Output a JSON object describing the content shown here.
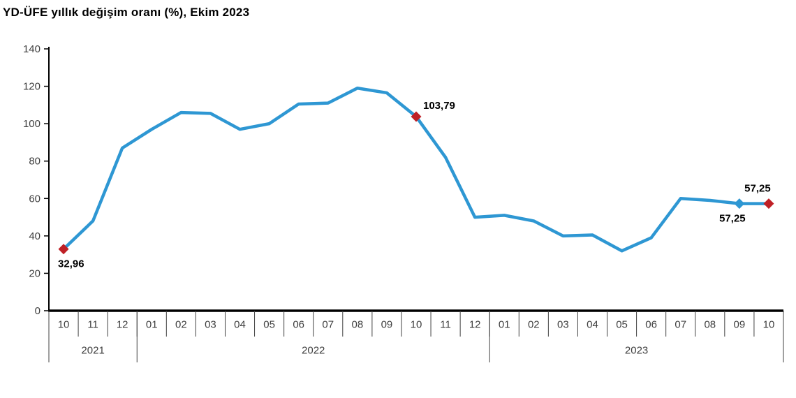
{
  "chart_data": {
    "type": "line",
    "title": "YD-ÜFE yıllık değişim oranı (%), Ekim 2023",
    "x": [
      "10",
      "11",
      "12",
      "01",
      "02",
      "03",
      "04",
      "05",
      "06",
      "07",
      "08",
      "09",
      "10",
      "11",
      "12",
      "01",
      "02",
      "03",
      "04",
      "05",
      "06",
      "07",
      "08",
      "09",
      "10"
    ],
    "year_groups": [
      {
        "label": "2021",
        "count": 3
      },
      {
        "label": "2022",
        "count": 12
      },
      {
        "label": "2023",
        "count": 10
      }
    ],
    "values": [
      32.96,
      48,
      87,
      97,
      106,
      105.5,
      97,
      100,
      110.5,
      111,
      119,
      116.5,
      103.79,
      82,
      50,
      51,
      48,
      40,
      40.5,
      32,
      39,
      60,
      59,
      57.25,
      57.25
    ],
    "ylim": [
      0,
      140
    ],
    "ytick_step": 20,
    "ytick_labels": [
      "0",
      "20",
      "40",
      "60",
      "80",
      "100",
      "120",
      "140"
    ],
    "grid": false,
    "legend": "none",
    "line_color": "#2e97d3",
    "axis_color": "#000000",
    "label_color": "#404040",
    "marker_points": [
      {
        "index": 0,
        "color": "#bf2026",
        "label": "32,96",
        "label_pos": "below-right"
      },
      {
        "index": 12,
        "color": "#bf2026",
        "label": "103,79",
        "label_pos": "right"
      },
      {
        "index": 23,
        "color": "#2e97d3",
        "label": "57,25",
        "label_pos": "below-left"
      },
      {
        "index": 24,
        "color": "#bf2026",
        "label": "57,25",
        "label_pos": "above-left"
      }
    ]
  }
}
